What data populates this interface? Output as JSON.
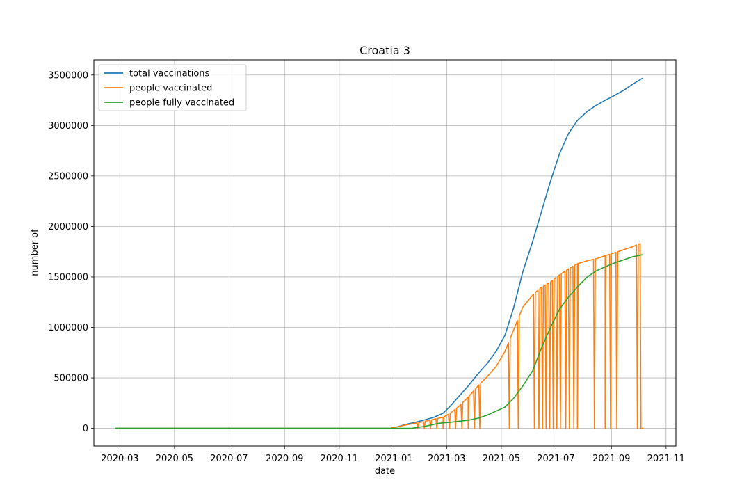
{
  "chart_data": {
    "type": "line",
    "title": "Croatia 3",
    "xlabel": "date",
    "ylabel": "number of",
    "x_range": [
      "2020-02-01",
      "2021-11-12"
    ],
    "ylim": [
      -175000,
      3650000
    ],
    "grid": true,
    "legend_position": "top-left",
    "x_ticks": [
      "2020-03",
      "2020-05",
      "2020-07",
      "2020-09",
      "2020-11",
      "2021-01",
      "2021-03",
      "2021-05",
      "2021-07",
      "2021-09",
      "2021-11"
    ],
    "y_ticks": [
      0,
      500000,
      1000000,
      1500000,
      2000000,
      2500000,
      3000000,
      3500000
    ],
    "series": [
      {
        "name": "total vaccinations",
        "color": "#1f77b4",
        "points": [
          [
            "2020-02-25",
            0
          ],
          [
            "2020-12-27",
            0
          ],
          [
            "2021-01-05",
            15000
          ],
          [
            "2021-01-15",
            40000
          ],
          [
            "2021-01-25",
            60000
          ],
          [
            "2021-02-05",
            85000
          ],
          [
            "2021-02-15",
            110000
          ],
          [
            "2021-02-25",
            150000
          ],
          [
            "2021-03-05",
            220000
          ],
          [
            "2021-03-15",
            320000
          ],
          [
            "2021-03-25",
            420000
          ],
          [
            "2021-04-05",
            540000
          ],
          [
            "2021-04-15",
            640000
          ],
          [
            "2021-04-25",
            760000
          ],
          [
            "2021-05-05",
            920000
          ],
          [
            "2021-05-15",
            1200000
          ],
          [
            "2021-05-25",
            1550000
          ],
          [
            "2021-06-05",
            1850000
          ],
          [
            "2021-06-15",
            2150000
          ],
          [
            "2021-06-25",
            2450000
          ],
          [
            "2021-07-05",
            2720000
          ],
          [
            "2021-07-15",
            2920000
          ],
          [
            "2021-07-25",
            3050000
          ],
          [
            "2021-08-05",
            3140000
          ],
          [
            "2021-08-15",
            3200000
          ],
          [
            "2021-08-25",
            3250000
          ],
          [
            "2021-09-05",
            3300000
          ],
          [
            "2021-09-15",
            3350000
          ],
          [
            "2021-09-25",
            3410000
          ],
          [
            "2021-10-06",
            3470000
          ]
        ]
      },
      {
        "name": "people vaccinated",
        "color": "#ff7f0e",
        "points": [
          [
            "2020-02-25",
            0
          ],
          [
            "2020-12-27",
            0
          ],
          [
            "2021-01-05",
            15000
          ],
          [
            "2021-01-15",
            35000
          ],
          [
            "2021-01-25",
            50000
          ],
          [
            "2021-02-05",
            70000
          ],
          [
            "2021-02-15",
            90000
          ],
          [
            "2021-02-25",
            110000
          ],
          [
            "2021-03-05",
            150000
          ],
          [
            "2021-03-15",
            220000
          ],
          [
            "2021-03-25",
            310000
          ],
          [
            "2021-04-05",
            420000
          ],
          [
            "2021-04-15",
            510000
          ],
          [
            "2021-04-25",
            610000
          ],
          [
            "2021-05-05",
            760000
          ],
          [
            "2021-05-15",
            980000
          ],
          [
            "2021-05-25",
            1200000
          ],
          [
            "2021-06-05",
            1320000
          ],
          [
            "2021-06-15",
            1400000
          ],
          [
            "2021-06-25",
            1450000
          ],
          [
            "2021-07-05",
            1520000
          ],
          [
            "2021-07-15",
            1580000
          ],
          [
            "2021-07-25",
            1630000
          ],
          [
            "2021-08-05",
            1660000
          ],
          [
            "2021-08-15",
            1680000
          ],
          [
            "2021-08-25",
            1710000
          ],
          [
            "2021-09-05",
            1740000
          ],
          [
            "2021-09-15",
            1770000
          ],
          [
            "2021-09-25",
            1800000
          ],
          [
            "2021-10-03",
            1830000
          ]
        ],
        "zero_dates": [
          "2021-01-28",
          "2021-02-04",
          "2021-02-11",
          "2021-02-18",
          "2021-02-25",
          "2021-03-04",
          "2021-03-11",
          "2021-03-18",
          "2021-03-25",
          "2021-04-01",
          "2021-04-07",
          "2021-05-10",
          "2021-05-20",
          "2021-06-07",
          "2021-06-12",
          "2021-06-16",
          "2021-06-20",
          "2021-06-24",
          "2021-06-28",
          "2021-07-02",
          "2021-07-06",
          "2021-07-12",
          "2021-07-16",
          "2021-07-21",
          "2021-07-25",
          "2021-08-13",
          "2021-08-25",
          "2021-08-31",
          "2021-09-07",
          "2021-09-30",
          "2021-10-04",
          "2021-10-07"
        ]
      },
      {
        "name": "people fully vaccinated",
        "color": "#2ca02c",
        "points": [
          [
            "2020-02-25",
            0
          ],
          [
            "2021-01-20",
            0
          ],
          [
            "2021-02-05",
            20000
          ],
          [
            "2021-02-20",
            50000
          ],
          [
            "2021-03-05",
            60000
          ],
          [
            "2021-03-15",
            70000
          ],
          [
            "2021-03-25",
            80000
          ],
          [
            "2021-04-05",
            100000
          ],
          [
            "2021-04-15",
            130000
          ],
          [
            "2021-04-25",
            170000
          ],
          [
            "2021-05-05",
            210000
          ],
          [
            "2021-05-15",
            300000
          ],
          [
            "2021-05-25",
            420000
          ],
          [
            "2021-06-05",
            570000
          ],
          [
            "2021-06-15",
            800000
          ],
          [
            "2021-06-25",
            1000000
          ],
          [
            "2021-07-05",
            1180000
          ],
          [
            "2021-07-15",
            1300000
          ],
          [
            "2021-07-25",
            1400000
          ],
          [
            "2021-08-05",
            1500000
          ],
          [
            "2021-08-15",
            1560000
          ],
          [
            "2021-08-25",
            1600000
          ],
          [
            "2021-09-05",
            1640000
          ],
          [
            "2021-09-15",
            1670000
          ],
          [
            "2021-09-25",
            1700000
          ],
          [
            "2021-10-06",
            1720000
          ]
        ]
      }
    ]
  }
}
